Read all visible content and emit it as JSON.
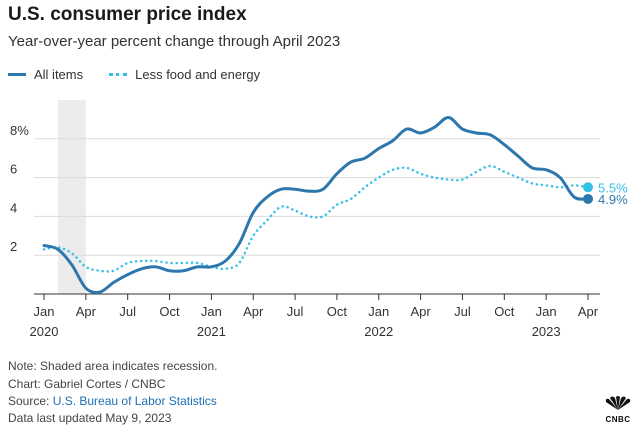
{
  "title": "U.S. consumer price index",
  "subtitle": "Year-over-year percent change through April 2023",
  "footer": {
    "note": "Note: Shaded area indicates recession.",
    "chart_credit": "Chart: Gabriel Cortes / CNBC",
    "source_prefix": "Source:",
    "source_link": "U.S. Bureau of Labor Statistics",
    "updated": "Data last updated May 9, 2023"
  },
  "logo": {
    "text": "CNBC",
    "icon": "nbc-peacock-icon"
  },
  "chart_data": {
    "type": "line",
    "x_unit": "month",
    "x_start": "2020-01",
    "x_end": "2023-04",
    "ylim": [
      0,
      10
    ],
    "y_ticks": [
      {
        "value": 2,
        "label": "2"
      },
      {
        "value": 4,
        "label": "4"
      },
      {
        "value": 6,
        "label": "6"
      },
      {
        "value": 8,
        "label": "8%"
      }
    ],
    "x_ticks": [
      {
        "date": "2020-01",
        "label": "Jan",
        "year": "2020"
      },
      {
        "date": "2020-04",
        "label": "Apr",
        "year": ""
      },
      {
        "date": "2020-07",
        "label": "Jul",
        "year": ""
      },
      {
        "date": "2020-10",
        "label": "Oct",
        "year": ""
      },
      {
        "date": "2021-01",
        "label": "Jan",
        "year": "2021"
      },
      {
        "date": "2021-04",
        "label": "Apr",
        "year": ""
      },
      {
        "date": "2021-07",
        "label": "Jul",
        "year": ""
      },
      {
        "date": "2021-10",
        "label": "Oct",
        "year": ""
      },
      {
        "date": "2022-01",
        "label": "Jan",
        "year": "2022"
      },
      {
        "date": "2022-04",
        "label": "Apr",
        "year": ""
      },
      {
        "date": "2022-07",
        "label": "Jul",
        "year": ""
      },
      {
        "date": "2022-10",
        "label": "Oct",
        "year": ""
      },
      {
        "date": "2023-01",
        "label": "Jan",
        "year": "2023"
      },
      {
        "date": "2023-04",
        "label": "Apr",
        "year": ""
      }
    ],
    "recession": {
      "start": "2020-02",
      "end": "2020-04"
    },
    "grid": true,
    "legend_position": "top-left",
    "series": [
      {
        "name": "All items",
        "color": "#2e77ad",
        "style": "solid",
        "end_label": "4.9%",
        "points": [
          [
            "2020-01",
            2.5
          ],
          [
            "2020-02",
            2.3
          ],
          [
            "2020-03",
            1.5
          ],
          [
            "2020-04",
            0.3
          ],
          [
            "2020-05",
            0.1
          ],
          [
            "2020-06",
            0.6
          ],
          [
            "2020-07",
            1.0
          ],
          [
            "2020-08",
            1.3
          ],
          [
            "2020-09",
            1.4
          ],
          [
            "2020-10",
            1.2
          ],
          [
            "2020-11",
            1.2
          ],
          [
            "2020-12",
            1.4
          ],
          [
            "2021-01",
            1.4
          ],
          [
            "2021-02",
            1.7
          ],
          [
            "2021-03",
            2.6
          ],
          [
            "2021-04",
            4.2
          ],
          [
            "2021-05",
            5.0
          ],
          [
            "2021-06",
            5.4
          ],
          [
            "2021-07",
            5.4
          ],
          [
            "2021-08",
            5.3
          ],
          [
            "2021-09",
            5.4
          ],
          [
            "2021-10",
            6.2
          ],
          [
            "2021-11",
            6.8
          ],
          [
            "2021-12",
            7.0
          ],
          [
            "2022-01",
            7.5
          ],
          [
            "2022-02",
            7.9
          ],
          [
            "2022-03",
            8.5
          ],
          [
            "2022-04",
            8.3
          ],
          [
            "2022-05",
            8.6
          ],
          [
            "2022-06",
            9.1
          ],
          [
            "2022-07",
            8.5
          ],
          [
            "2022-08",
            8.3
          ],
          [
            "2022-09",
            8.2
          ],
          [
            "2022-10",
            7.7
          ],
          [
            "2022-11",
            7.1
          ],
          [
            "2022-12",
            6.5
          ],
          [
            "2023-01",
            6.4
          ],
          [
            "2023-02",
            6.0
          ],
          [
            "2023-03",
            5.0
          ],
          [
            "2023-04",
            4.9
          ]
        ]
      },
      {
        "name": "Less food and energy",
        "color": "#35c1e6",
        "style": "dotted",
        "end_label": "5.5%",
        "points": [
          [
            "2020-01",
            2.3
          ],
          [
            "2020-02",
            2.4
          ],
          [
            "2020-03",
            2.1
          ],
          [
            "2020-04",
            1.4
          ],
          [
            "2020-05",
            1.2
          ],
          [
            "2020-06",
            1.2
          ],
          [
            "2020-07",
            1.6
          ],
          [
            "2020-08",
            1.7
          ],
          [
            "2020-09",
            1.7
          ],
          [
            "2020-10",
            1.6
          ],
          [
            "2020-11",
            1.6
          ],
          [
            "2020-12",
            1.6
          ],
          [
            "2021-01",
            1.4
          ],
          [
            "2021-02",
            1.3
          ],
          [
            "2021-03",
            1.6
          ],
          [
            "2021-04",
            3.0
          ],
          [
            "2021-05",
            3.8
          ],
          [
            "2021-06",
            4.5
          ],
          [
            "2021-07",
            4.3
          ],
          [
            "2021-08",
            4.0
          ],
          [
            "2021-09",
            4.0
          ],
          [
            "2021-10",
            4.6
          ],
          [
            "2021-11",
            4.9
          ],
          [
            "2021-12",
            5.5
          ],
          [
            "2022-01",
            6.0
          ],
          [
            "2022-02",
            6.4
          ],
          [
            "2022-03",
            6.5
          ],
          [
            "2022-04",
            6.2
          ],
          [
            "2022-05",
            6.0
          ],
          [
            "2022-06",
            5.9
          ],
          [
            "2022-07",
            5.9
          ],
          [
            "2022-08",
            6.3
          ],
          [
            "2022-09",
            6.6
          ],
          [
            "2022-10",
            6.3
          ],
          [
            "2022-11",
            6.0
          ],
          [
            "2022-12",
            5.7
          ],
          [
            "2023-01",
            5.6
          ],
          [
            "2023-02",
            5.5
          ],
          [
            "2023-03",
            5.6
          ],
          [
            "2023-04",
            5.5
          ]
        ]
      }
    ]
  }
}
